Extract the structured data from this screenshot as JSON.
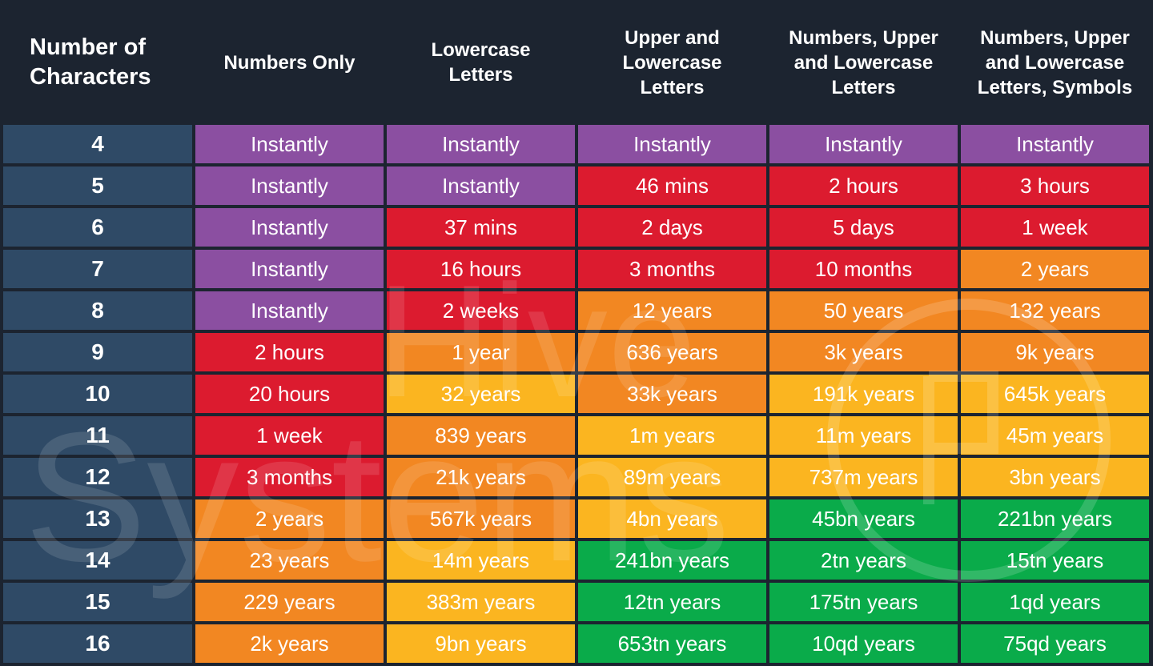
{
  "chart_data": {
    "type": "table",
    "columns": [
      "Number of\nCharacters",
      "Numbers Only",
      "Lowercase\nLetters",
      "Upper and\nLowercase\nLetters",
      "Numbers, Upper\nand Lowercase\nLetters",
      "Numbers, Upper\nand Lowercase\nLetters, Symbols"
    ],
    "rows": [
      {
        "chars": "4",
        "values": [
          "Instantly",
          "Instantly",
          "Instantly",
          "Instantly",
          "Instantly"
        ]
      },
      {
        "chars": "5",
        "values": [
          "Instantly",
          "Instantly",
          "46 mins",
          "2 hours",
          "3 hours"
        ]
      },
      {
        "chars": "6",
        "values": [
          "Instantly",
          "37 mins",
          "2 days",
          "5 days",
          "1 week"
        ]
      },
      {
        "chars": "7",
        "values": [
          "Instantly",
          "16 hours",
          "3 months",
          "10 months",
          "2 years"
        ]
      },
      {
        "chars": "8",
        "values": [
          "Instantly",
          "2 weeks",
          "12 years",
          "50 years",
          "132 years"
        ]
      },
      {
        "chars": "9",
        "values": [
          "2 hours",
          "1 year",
          "636 years",
          "3k years",
          "9k years"
        ]
      },
      {
        "chars": "10",
        "values": [
          "20 hours",
          "32 years",
          "33k years",
          "191k years",
          "645k years"
        ]
      },
      {
        "chars": "11",
        "values": [
          "1 week",
          "839 years",
          "1m years",
          "11m years",
          "45m years"
        ]
      },
      {
        "chars": "12",
        "values": [
          "3 months",
          "21k years",
          "89m years",
          "737m years",
          "3bn years"
        ]
      },
      {
        "chars": "13",
        "values": [
          "2 years",
          "567k years",
          "4bn years",
          "45bn years",
          "221bn years"
        ]
      },
      {
        "chars": "14",
        "values": [
          "23 years",
          "14m years",
          "241bn years",
          "2tn years",
          "15tn years"
        ]
      },
      {
        "chars": "15",
        "values": [
          "229 years",
          "383m years",
          "12tn years",
          "175tn years",
          "1qd years"
        ]
      },
      {
        "chars": "16",
        "values": [
          "2k years",
          "9bn years",
          "653tn years",
          "10qd years",
          "75qd years"
        ]
      }
    ],
    "cell_colors": [
      [
        "instant",
        "instant",
        "instant",
        "instant",
        "instant"
      ],
      [
        "instant",
        "instant",
        "red",
        "red",
        "red"
      ],
      [
        "instant",
        "red",
        "red",
        "red",
        "red"
      ],
      [
        "instant",
        "red",
        "red",
        "red",
        "orange"
      ],
      [
        "instant",
        "red",
        "orange",
        "orange",
        "orange"
      ],
      [
        "red",
        "orange",
        "orange",
        "orange",
        "orange"
      ],
      [
        "red",
        "yellow",
        "orange",
        "yellow",
        "yellow"
      ],
      [
        "red",
        "orange",
        "yellow",
        "yellow",
        "yellow"
      ],
      [
        "red",
        "orange",
        "yellow",
        "yellow",
        "yellow"
      ],
      [
        "orange",
        "orange",
        "yellow",
        "green",
        "green"
      ],
      [
        "orange",
        "yellow",
        "green",
        "green",
        "green"
      ],
      [
        "orange",
        "yellow",
        "green",
        "green",
        "green"
      ],
      [
        "orange",
        "yellow",
        "green",
        "green",
        "green"
      ]
    ],
    "palette": {
      "background": "#1c2430",
      "char_column": "#2f4a66",
      "instant": "#8b4fa1",
      "red": "#dc1b2f",
      "orange": "#f28722",
      "yellow": "#fbb520",
      "green": "#0aab4a"
    }
  },
  "watermark": {
    "text_line1": "Hive",
    "text_line2": "Systems"
  }
}
